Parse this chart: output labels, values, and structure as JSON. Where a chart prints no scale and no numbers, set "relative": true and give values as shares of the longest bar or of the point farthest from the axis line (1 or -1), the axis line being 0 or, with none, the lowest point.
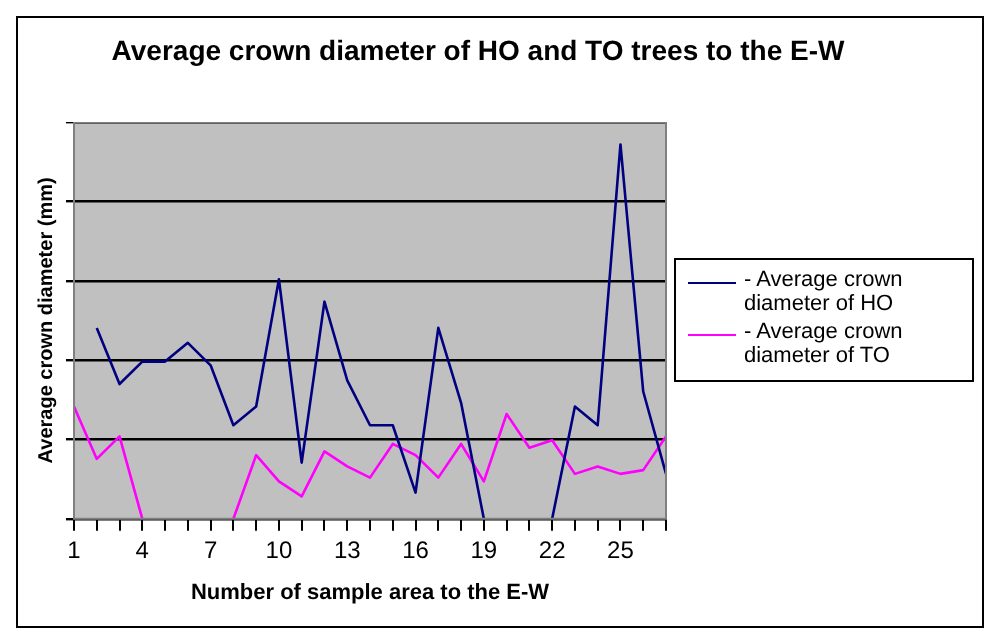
{
  "chart_data": {
    "type": "line",
    "title": "Average crown diameter of HO and TO trees to the E-W",
    "xlabel": "Number of sample area to the E-W",
    "ylabel": "Average crown diameter (mm)",
    "relative": true,
    "grid": "y",
    "legend": "right",
    "marker": "none",
    "line_style": "solid",
    "categories": [
      "1",
      null,
      null,
      "4",
      null,
      null,
      "7",
      null,
      null,
      "10",
      null,
      null,
      "13",
      null,
      null,
      "16",
      null,
      null,
      "19",
      null,
      null,
      "22",
      null,
      null,
      "25",
      null,
      null
    ],
    "series": [
      {
        "name": "- Average crown diameter of HO",
        "color": "#000080",
        "values": [
          null,
          0.51,
          0.36,
          0.42,
          0.42,
          0.47,
          0.41,
          0.25,
          0.3,
          0.64,
          0.15,
          0.58,
          0.37,
          0.25,
          0.25,
          0.07,
          0.51,
          0.31,
          0,
          null,
          null,
          0,
          0.3,
          0.25,
          1,
          0.34,
          0.12
        ]
      },
      {
        "name": "- Average crown diameter of TO",
        "color": "#ff00ff",
        "values": [
          0.3,
          0.16,
          0.22,
          0,
          null,
          null,
          null,
          0,
          0.17,
          0.1,
          0.06,
          0.18,
          0.14,
          0.11,
          0.2,
          0.17,
          0.11,
          0.2,
          0.1,
          0.28,
          0.19,
          0.21,
          0.12,
          0.14,
          0.12,
          0.13,
          0.22
        ]
      }
    ]
  }
}
